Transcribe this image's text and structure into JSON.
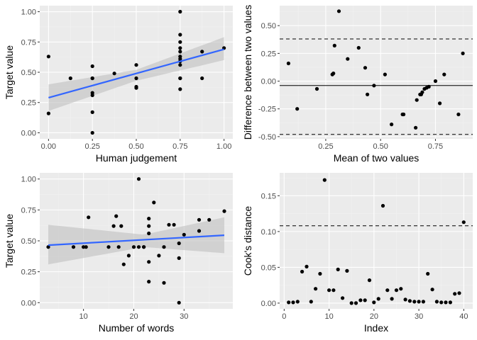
{
  "colors": {
    "panel_bg": "#ebebeb",
    "grid_major": "#ffffff",
    "grid_minor": "#f2f2f2",
    "point": "#000000",
    "fit_line": "#3366ff",
    "ci_band": "#bfbfbf",
    "ref_line": "#000000"
  },
  "chart_data": [
    {
      "type": "scatter",
      "xlabel": "Human judgement",
      "ylabel": "Target value",
      "xlim": [
        -0.05,
        1.05
      ],
      "ylim": [
        -0.05,
        1.05
      ],
      "xticks": [
        0,
        0.25,
        0.5,
        0.75,
        1
      ],
      "xtick_labels": [
        "0.00",
        "0.25",
        "0.50",
        "0.75",
        "1.00"
      ],
      "yticks": [
        0,
        0.25,
        0.5,
        0.75,
        1
      ],
      "ytick_labels": [
        "0.00",
        "0.25",
        "0.50",
        "0.75",
        "1.00"
      ],
      "grid": true,
      "points": {
        "x": [
          0,
          0,
          0.125,
          0.25,
          0.25,
          0.25,
          0.25,
          0.25,
          0.25,
          0.25,
          0.375,
          0.5,
          0.5,
          0.5,
          0.5,
          0.75,
          0.75,
          0.75,
          0.75,
          0.75,
          0.75,
          0.75,
          0.75,
          0.75,
          0.75,
          0.75,
          0.75,
          0.875,
          0.875,
          1
        ],
        "y": [
          0.63,
          0.16,
          0.45,
          0.55,
          0.45,
          0.33,
          0.31,
          0.17,
          0.0,
          0.45,
          0.49,
          0.56,
          0.45,
          0.38,
          0.37,
          1.0,
          0.81,
          0.75,
          0.7,
          0.67,
          0.63,
          0.61,
          0.59,
          0.56,
          0.45,
          0.45,
          0.36,
          0.67,
          0.45,
          0.7
        ]
      },
      "fit": {
        "method": "lm",
        "x": [
          0,
          1
        ],
        "y": [
          0.29,
          0.69
        ]
      },
      "ci_band": {
        "x": [
          0,
          0.5,
          1
        ],
        "lower": [
          0.18,
          0.43,
          0.6
        ],
        "upper": [
          0.4,
          0.52,
          0.79
        ]
      }
    },
    {
      "type": "scatter",
      "xlabel": "Mean of two values",
      "ylabel": "Difference between two values",
      "xlim": [
        0.04,
        0.92
      ],
      "ylim": [
        -0.52,
        0.68
      ],
      "xticks": [
        0.25,
        0.5,
        0.75
      ],
      "xtick_labels": [
        "0.25",
        "0.50",
        "0.75"
      ],
      "yticks": [
        -0.5,
        -0.25,
        0,
        0.25,
        0.5
      ],
      "ytick_labels": [
        "-0.50",
        "-0.25",
        "0.00",
        "0.25",
        "0.50"
      ],
      "grid": true,
      "points": {
        "x": [
          0.08,
          0.12,
          0.21,
          0.28,
          0.285,
          0.29,
          0.31,
          0.35,
          0.4,
          0.43,
          0.44,
          0.47,
          0.52,
          0.55,
          0.6,
          0.605,
          0.66,
          0.665,
          0.68,
          0.685,
          0.69,
          0.7,
          0.71,
          0.72,
          0.75,
          0.77,
          0.79,
          0.855,
          0.875
        ],
        "y": [
          0.16,
          -0.25,
          -0.07,
          0.06,
          0.07,
          0.32,
          0.63,
          0.2,
          0.3,
          0.12,
          -0.12,
          -0.04,
          0.06,
          -0.39,
          -0.3,
          -0.3,
          -0.42,
          -0.17,
          -0.12,
          -0.12,
          -0.1,
          -0.07,
          -0.06,
          -0.05,
          0.0,
          -0.2,
          0.06,
          -0.3,
          0.25
        ]
      },
      "hlines": [
        {
          "y": -0.04,
          "style": "solid"
        },
        {
          "y": 0.38,
          "style": "dashed"
        },
        {
          "y": -0.48,
          "style": "dashed"
        }
      ]
    },
    {
      "type": "scatter",
      "xlabel": "Number of words",
      "ylabel": "Target value",
      "xlim": [
        1.3,
        39.7
      ],
      "ylim": [
        -0.05,
        1.05
      ],
      "xticks": [
        10,
        20,
        30
      ],
      "xtick_labels": [
        "10",
        "20",
        "30"
      ],
      "yticks": [
        0,
        0.25,
        0.5,
        0.75,
        1
      ],
      "ytick_labels": [
        "0.00",
        "0.25",
        "0.50",
        "0.75",
        "1.00"
      ],
      "grid": true,
      "points": {
        "x": [
          3,
          8,
          10,
          10.5,
          11,
          15,
          16,
          16.5,
          17,
          17.5,
          18,
          19,
          20,
          21,
          21,
          22,
          22,
          23,
          23,
          23,
          23,
          23,
          24,
          25,
          26,
          26,
          27,
          28,
          29,
          29,
          29,
          30,
          33,
          33,
          35,
          38
        ],
        "y": [
          0.45,
          0.45,
          0.45,
          0.45,
          0.69,
          0.45,
          0.62,
          0.7,
          0.45,
          0.62,
          0.31,
          0.38,
          0.45,
          1.0,
          0.45,
          0.45,
          0.45,
          0.68,
          0.62,
          0.56,
          0.33,
          0.17,
          0.81,
          0.38,
          0.45,
          0.16,
          0.63,
          0.63,
          0.48,
          0.36,
          0.0,
          0.55,
          0.58,
          0.67,
          0.67,
          0.74
        ]
      },
      "fit": {
        "method": "lm",
        "x": [
          3,
          38
        ],
        "y": [
          0.465,
          0.545
        ]
      },
      "ci_band": {
        "x": [
          3,
          22,
          38
        ],
        "lower": [
          0.31,
          0.45,
          0.4
        ],
        "upper": [
          0.63,
          0.55,
          0.69
        ]
      }
    },
    {
      "type": "scatter",
      "xlabel": "Index",
      "ylabel": "Cook's distance",
      "xlim": [
        -1,
        42
      ],
      "ylim": [
        -0.008,
        0.182
      ],
      "xticks": [
        0,
        10,
        20,
        30,
        40
      ],
      "xtick_labels": [
        "0",
        "10",
        "20",
        "30",
        "40"
      ],
      "yticks": [
        0,
        0.05,
        0.1,
        0.15
      ],
      "ytick_labels": [
        "0.00",
        "0.05",
        "0.10",
        "0.15"
      ],
      "grid": true,
      "points": {
        "x": [
          1,
          2,
          3,
          4,
          5,
          6,
          7,
          8,
          9,
          10,
          11,
          12,
          13,
          14,
          15,
          16,
          17,
          18,
          19,
          20,
          21,
          22,
          23,
          24,
          25,
          26,
          27,
          28,
          29,
          30,
          31,
          32,
          33,
          34,
          35,
          36,
          37,
          38,
          39,
          40
        ],
        "y": [
          0.001,
          0.001,
          0.002,
          0.044,
          0.051,
          0.002,
          0.02,
          0.041,
          0.172,
          0.018,
          0.018,
          0.047,
          0.007,
          0.045,
          0.0,
          0.0,
          0.004,
          0.004,
          0.032,
          0.001,
          0.006,
          0.136,
          0.018,
          0.006,
          0.018,
          0.02,
          0.005,
          0.003,
          0.002,
          0.002,
          0.002,
          0.041,
          0.019,
          0.002,
          0.001,
          0.001,
          0.001,
          0.013,
          0.014,
          0.113
        ]
      },
      "hlines": [
        {
          "y": 0.108,
          "style": "dashed"
        }
      ]
    }
  ]
}
